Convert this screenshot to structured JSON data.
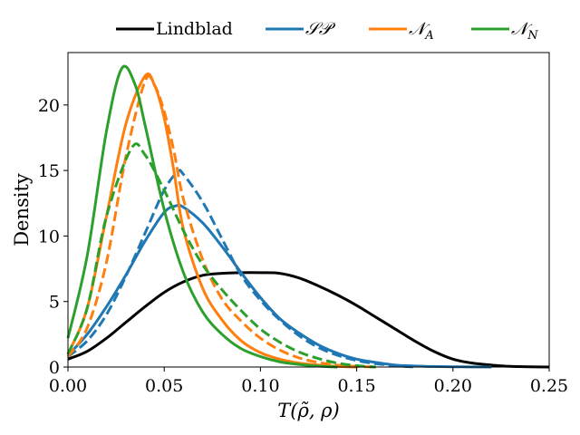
{
  "chart_data": {
    "type": "line",
    "xlabel": "T(ρ̃, ρ)",
    "ylabel": "Density",
    "xlim": [
      0.0,
      0.25
    ],
    "ylim": [
      0,
      24
    ],
    "xticks": [
      "0.00",
      "0.05",
      "0.10",
      "0.15",
      "0.20",
      "0.25"
    ],
    "yticks": [
      "0",
      "5",
      "10",
      "15",
      "20"
    ],
    "grid": false,
    "legend_position": "top",
    "series": [
      {
        "name": "Lindblad",
        "color": "#000000",
        "style": "solid",
        "x": [
          0,
          0.01,
          0.02,
          0.03,
          0.04,
          0.05,
          0.06,
          0.07,
          0.08,
          0.09,
          0.1,
          0.11,
          0.12,
          0.13,
          0.14,
          0.15,
          0.16,
          0.17,
          0.18,
          0.19,
          0.2,
          0.21,
          0.22,
          0.23,
          0.24,
          0.25
        ],
        "y": [
          0.6,
          1.2,
          2.2,
          3.4,
          4.6,
          5.7,
          6.5,
          7.0,
          7.15,
          7.2,
          7.2,
          7.15,
          6.8,
          6.2,
          5.5,
          4.7,
          3.8,
          2.9,
          2.0,
          1.2,
          0.6,
          0.3,
          0.15,
          0.05,
          0.02,
          0.0
        ]
      },
      {
        "name": "SP",
        "color": "#1f77b4",
        "style": "solid",
        "x": [
          0,
          0.01,
          0.02,
          0.03,
          0.04,
          0.05,
          0.056,
          0.06,
          0.07,
          0.08,
          0.09,
          0.1,
          0.11,
          0.12,
          0.13,
          0.14,
          0.15,
          0.16,
          0.17,
          0.18,
          0.19,
          0.2,
          0.22
        ],
        "y": [
          0.9,
          2.5,
          4.6,
          7.0,
          9.6,
          11.8,
          12.3,
          12.2,
          11.0,
          9.2,
          7.2,
          5.3,
          3.7,
          2.6,
          1.7,
          1.05,
          0.6,
          0.35,
          0.15,
          0.08,
          0.04,
          0.02,
          0.0
        ]
      },
      {
        "name": "SP (dashed)",
        "color": "#1f77b4",
        "style": "dashed",
        "x": [
          0,
          0.01,
          0.02,
          0.03,
          0.04,
          0.05,
          0.057,
          0.06,
          0.07,
          0.08,
          0.09,
          0.1,
          0.11,
          0.12,
          0.13,
          0.14,
          0.15,
          0.16,
          0.17,
          0.18
        ],
        "y": [
          0.8,
          2.0,
          4.0,
          6.9,
          10.2,
          13.5,
          14.9,
          14.7,
          12.6,
          9.8,
          7.0,
          5.1,
          3.6,
          2.4,
          1.5,
          0.9,
          0.5,
          0.25,
          0.1,
          0.0
        ]
      },
      {
        "name": "NA",
        "color": "#ff7f0e",
        "style": "solid",
        "x": [
          0,
          0.01,
          0.02,
          0.03,
          0.04,
          0.045,
          0.05,
          0.055,
          0.06,
          0.07,
          0.08,
          0.09,
          0.1,
          0.11,
          0.12,
          0.13,
          0.14,
          0.15
        ],
        "y": [
          1.0,
          4.5,
          11.5,
          18.5,
          22.2,
          21.5,
          19.0,
          15.0,
          10.5,
          6.0,
          3.6,
          2.0,
          1.1,
          0.6,
          0.3,
          0.15,
          0.05,
          0.0
        ]
      },
      {
        "name": "NA (dashed)",
        "color": "#ff7f0e",
        "style": "dashed",
        "x": [
          0,
          0.01,
          0.02,
          0.03,
          0.04,
          0.045,
          0.05,
          0.055,
          0.06,
          0.07,
          0.08,
          0.09,
          0.1,
          0.11,
          0.12,
          0.13,
          0.14,
          0.15,
          0.16
        ],
        "y": [
          0.8,
          3.0,
          8.0,
          16.0,
          21.8,
          21.5,
          19.5,
          16.5,
          12.8,
          8.2,
          5.2,
          3.5,
          2.2,
          1.3,
          0.7,
          0.35,
          0.15,
          0.05,
          0.0
        ]
      },
      {
        "name": "NN",
        "color": "#2ca02c",
        "style": "solid",
        "x": [
          0,
          0.01,
          0.02,
          0.028,
          0.035,
          0.04,
          0.05,
          0.06,
          0.07,
          0.08,
          0.09,
          0.1,
          0.11,
          0.12,
          0.13,
          0.14
        ],
        "y": [
          2.2,
          8.5,
          18.0,
          22.8,
          21.5,
          18.5,
          12.0,
          7.2,
          4.2,
          2.5,
          1.4,
          0.8,
          0.4,
          0.2,
          0.07,
          0.0
        ]
      },
      {
        "name": "NN (dashed)",
        "color": "#2ca02c",
        "style": "dashed",
        "x": [
          0,
          0.01,
          0.02,
          0.033,
          0.04,
          0.05,
          0.06,
          0.07,
          0.08,
          0.09,
          0.1,
          0.11,
          0.12,
          0.13,
          0.14,
          0.15,
          0.16
        ],
        "y": [
          1.0,
          4.5,
          11.5,
          16.7,
          16.2,
          13.5,
          10.4,
          7.8,
          5.9,
          4.3,
          2.9,
          1.9,
          1.15,
          0.65,
          0.3,
          0.1,
          0.0
        ]
      }
    ],
    "legend": [
      {
        "label": "Lindblad",
        "color": "#000000",
        "kind": "text"
      },
      {
        "label": "𝒮𝒫",
        "color": "#1f77b4",
        "kind": "math"
      },
      {
        "label": "𝒩A",
        "color": "#ff7f0e",
        "kind": "math",
        "base": "𝒩",
        "sub": "A"
      },
      {
        "label": "𝒩N",
        "color": "#2ca02c",
        "kind": "math",
        "base": "𝒩",
        "sub": "N"
      }
    ]
  }
}
